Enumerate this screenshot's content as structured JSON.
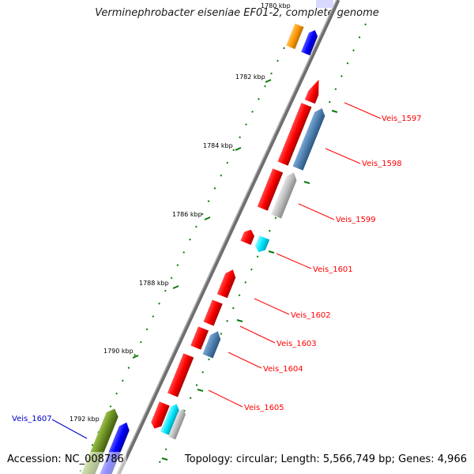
{
  "title": "Verminephrobacter eiseniae EF01-2, complete genome",
  "footer": {
    "accession": "Accession: NC_008786",
    "summary": "Topology: circular; Length: 5,566,749 bp; Genes: 4,966"
  },
  "ticks": [
    "1780 kbp",
    "1782 kbp",
    "1784 kbp",
    "1786 kbp",
    "1788 kbp",
    "1790 kbp",
    "1792 kbp"
  ],
  "gene_labels": [
    {
      "text": "Veis_1597",
      "color": "#ff0000"
    },
    {
      "text": "Veis_1598",
      "color": "#ff0000"
    },
    {
      "text": "Veis_1599",
      "color": "#ff0000"
    },
    {
      "text": "Veis_1601",
      "color": "#ff0000"
    },
    {
      "text": "Veis_1602",
      "color": "#ff0000"
    },
    {
      "text": "Veis_1603",
      "color": "#ff0000"
    },
    {
      "text": "Veis_1604",
      "color": "#ff0000"
    },
    {
      "text": "Veis_1605",
      "color": "#ff0000"
    },
    {
      "text": "Veis_1607",
      "color": "#0000cc"
    }
  ],
  "colors": {
    "backbone": "#8a8a8a",
    "gene_red": "#ff0000",
    "gene_blue": "#0000ff",
    "gene_steel": "#4f7fae",
    "gene_gray": "#bdbdbd",
    "gene_cyan": "#00e6ff",
    "gene_orange": "#ff9a00",
    "gene_olive": "#6b8e23",
    "tick_green": "#0a7a0a"
  }
}
